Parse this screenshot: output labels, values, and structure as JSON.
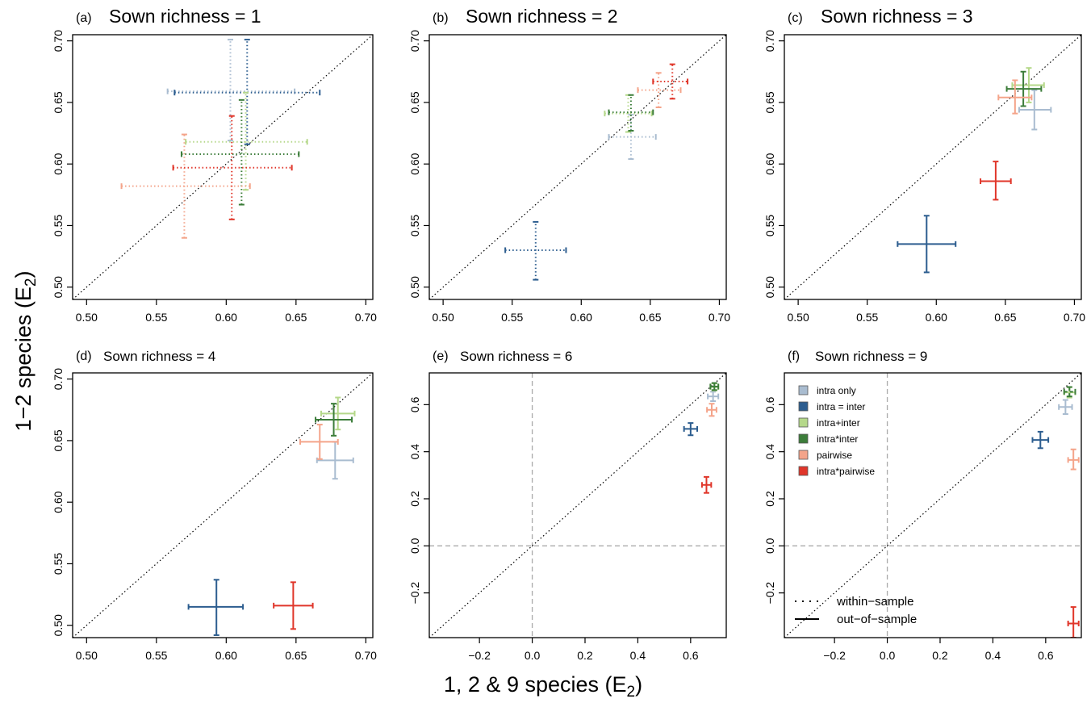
{
  "figure": {
    "ylabel": "1−2 species (E",
    "ylabel_sub": "2",
    "ylabel_tail": ")",
    "xlabel": "1, 2 & 9 species (E",
    "xlabel_sub": "2",
    "xlabel_tail": ")"
  },
  "legend": {
    "models": [
      {
        "label": "intra only",
        "color": "#a9bcd0"
      },
      {
        "label": "intra = inter",
        "color": "#2c5d8f"
      },
      {
        "label": "intra+inter",
        "color": "#b5d88a"
      },
      {
        "label": "intra*inter",
        "color": "#3c7d3a"
      },
      {
        "label": "pairwise",
        "color": "#f4a48a"
      },
      {
        "label": "intra*pairwise",
        "color": "#e0362a"
      }
    ],
    "line_types": [
      {
        "label": "within−sample",
        "style": "dotted"
      },
      {
        "label": "out−of−sample",
        "style": "solid"
      }
    ]
  },
  "chart_data": [
    {
      "type": "scatter",
      "letter": "(a)",
      "title": "Sown richness = 1",
      "xlim": [
        0.49,
        0.705
      ],
      "ylim": [
        0.49,
        0.705
      ],
      "xticks": [
        0.5,
        0.55,
        0.6,
        0.65,
        0.7
      ],
      "yticks": [
        0.5,
        0.55,
        0.6,
        0.65,
        0.7
      ],
      "tick_labels": [
        "0.50",
        "0.55",
        "0.60",
        "0.65",
        "0.70"
      ],
      "diagonal": true,
      "zero_lines": false,
      "points": [
        {
          "model": "intra only",
          "x": 0.603,
          "y": 0.659,
          "xlo": 0.558,
          "xhi": 0.649,
          "ylo": 0.619,
          "yhi": 0.701,
          "line": "dotted"
        },
        {
          "model": "intra = inter",
          "x": 0.615,
          "y": 0.658,
          "xlo": 0.563,
          "xhi": 0.667,
          "ylo": 0.616,
          "yhi": 0.701,
          "line": "dotted"
        },
        {
          "model": "intra+inter",
          "x": 0.614,
          "y": 0.618,
          "xlo": 0.571,
          "xhi": 0.658,
          "ylo": 0.579,
          "yhi": 0.658,
          "line": "dotted"
        },
        {
          "model": "intra*inter",
          "x": 0.611,
          "y": 0.608,
          "xlo": 0.568,
          "xhi": 0.652,
          "ylo": 0.567,
          "yhi": 0.652,
          "line": "dotted"
        },
        {
          "model": "pairwise",
          "x": 0.57,
          "y": 0.582,
          "xlo": 0.525,
          "xhi": 0.617,
          "ylo": 0.54,
          "yhi": 0.624,
          "line": "dotted"
        },
        {
          "model": "intra*pairwise",
          "x": 0.604,
          "y": 0.597,
          "xlo": 0.562,
          "xhi": 0.647,
          "ylo": 0.555,
          "yhi": 0.639,
          "line": "dotted"
        }
      ]
    },
    {
      "type": "scatter",
      "letter": "(b)",
      "title": "Sown richness = 2",
      "xlim": [
        0.49,
        0.705
      ],
      "ylim": [
        0.49,
        0.705
      ],
      "xticks": [
        0.5,
        0.55,
        0.6,
        0.65,
        0.7
      ],
      "yticks": [
        0.5,
        0.55,
        0.6,
        0.65,
        0.7
      ],
      "tick_labels": [
        "0.50",
        "0.55",
        "0.60",
        "0.65",
        "0.70"
      ],
      "diagonal": true,
      "zero_lines": false,
      "points": [
        {
          "model": "intra only",
          "x": 0.636,
          "y": 0.622,
          "xlo": 0.62,
          "xhi": 0.654,
          "ylo": 0.604,
          "yhi": 0.64,
          "line": "dotted"
        },
        {
          "model": "intra = inter",
          "x": 0.567,
          "y": 0.53,
          "xlo": 0.545,
          "xhi": 0.589,
          "ylo": 0.506,
          "yhi": 0.553,
          "line": "dotted"
        },
        {
          "model": "intra+inter",
          "x": 0.634,
          "y": 0.641,
          "xlo": 0.617,
          "xhi": 0.651,
          "ylo": 0.626,
          "yhi": 0.656,
          "line": "dotted"
        },
        {
          "model": "intra*inter",
          "x": 0.636,
          "y": 0.642,
          "xlo": 0.62,
          "xhi": 0.652,
          "ylo": 0.627,
          "yhi": 0.656,
          "line": "dotted"
        },
        {
          "model": "pairwise",
          "x": 0.656,
          "y": 0.66,
          "xlo": 0.641,
          "xhi": 0.672,
          "ylo": 0.646,
          "yhi": 0.674,
          "line": "dotted"
        },
        {
          "model": "intra*pairwise",
          "x": 0.666,
          "y": 0.667,
          "xlo": 0.652,
          "xhi": 0.677,
          "ylo": 0.653,
          "yhi": 0.681,
          "line": "dotted"
        }
      ]
    },
    {
      "type": "scatter",
      "letter": "(c)",
      "title": "Sown richness = 3",
      "xlim": [
        0.49,
        0.705
      ],
      "ylim": [
        0.49,
        0.705
      ],
      "xticks": [
        0.5,
        0.55,
        0.6,
        0.65,
        0.7
      ],
      "yticks": [
        0.5,
        0.55,
        0.6,
        0.65,
        0.7
      ],
      "tick_labels": [
        "0.50",
        "0.55",
        "0.60",
        "0.65",
        "0.70"
      ],
      "diagonal": true,
      "zero_lines": false,
      "points": [
        {
          "model": "intra only",
          "x": 0.671,
          "y": 0.644,
          "xlo": 0.66,
          "xhi": 0.683,
          "ylo": 0.628,
          "yhi": 0.66,
          "line": "solid"
        },
        {
          "model": "intra = inter",
          "x": 0.593,
          "y": 0.535,
          "xlo": 0.572,
          "xhi": 0.614,
          "ylo": 0.512,
          "yhi": 0.558,
          "line": "solid"
        },
        {
          "model": "intra+inter",
          "x": 0.667,
          "y": 0.664,
          "xlo": 0.655,
          "xhi": 0.678,
          "ylo": 0.65,
          "yhi": 0.678,
          "line": "solid"
        },
        {
          "model": "intra*inter",
          "x": 0.663,
          "y": 0.661,
          "xlo": 0.651,
          "xhi": 0.676,
          "ylo": 0.647,
          "yhi": 0.675,
          "line": "solid"
        },
        {
          "model": "pairwise",
          "x": 0.657,
          "y": 0.654,
          "xlo": 0.645,
          "xhi": 0.669,
          "ylo": 0.641,
          "yhi": 0.668,
          "line": "solid"
        },
        {
          "model": "intra*pairwise",
          "x": 0.643,
          "y": 0.586,
          "xlo": 0.632,
          "xhi": 0.654,
          "ylo": 0.571,
          "yhi": 0.602,
          "line": "solid"
        }
      ]
    },
    {
      "type": "scatter",
      "letter": "(d)",
      "title": "Sown richness = 4",
      "xlim": [
        0.49,
        0.705
      ],
      "ylim": [
        0.49,
        0.705
      ],
      "xticks": [
        0.5,
        0.55,
        0.6,
        0.65,
        0.7
      ],
      "yticks": [
        0.5,
        0.55,
        0.6,
        0.65,
        0.7
      ],
      "tick_labels": [
        "0.50",
        "0.55",
        "0.60",
        "0.65",
        "0.70"
      ],
      "diagonal": true,
      "zero_lines": false,
      "points": [
        {
          "model": "intra only",
          "x": 0.678,
          "y": 0.634,
          "xlo": 0.665,
          "xhi": 0.691,
          "ylo": 0.619,
          "yhi": 0.649,
          "line": "solid"
        },
        {
          "model": "intra = inter",
          "x": 0.593,
          "y": 0.515,
          "xlo": 0.573,
          "xhi": 0.612,
          "ylo": 0.492,
          "yhi": 0.537,
          "line": "solid"
        },
        {
          "model": "intra+inter",
          "x": 0.68,
          "y": 0.672,
          "xlo": 0.668,
          "xhi": 0.692,
          "ylo": 0.659,
          "yhi": 0.685,
          "line": "solid"
        },
        {
          "model": "intra*inter",
          "x": 0.677,
          "y": 0.667,
          "xlo": 0.664,
          "xhi": 0.69,
          "ylo": 0.654,
          "yhi": 0.68,
          "line": "solid"
        },
        {
          "model": "pairwise",
          "x": 0.667,
          "y": 0.649,
          "xlo": 0.653,
          "xhi": 0.68,
          "ylo": 0.635,
          "yhi": 0.663,
          "line": "solid"
        },
        {
          "model": "intra*pairwise",
          "x": 0.648,
          "y": 0.516,
          "xlo": 0.634,
          "xhi": 0.662,
          "ylo": 0.497,
          "yhi": 0.535,
          "line": "solid"
        }
      ]
    },
    {
      "type": "scatter",
      "letter": "(e)",
      "title": "Sown richness = 6",
      "xlim": [
        -0.39,
        0.735
      ],
      "ylim": [
        -0.39,
        0.735
      ],
      "xticks": [
        -0.2,
        0.0,
        0.2,
        0.4,
        0.6
      ],
      "yticks": [
        -0.2,
        0.0,
        0.2,
        0.4,
        0.6
      ],
      "tick_labels": [
        "−0.2",
        "0.0",
        "0.2",
        "0.4",
        "0.6"
      ],
      "diagonal": true,
      "zero_lines": true,
      "points": [
        {
          "model": "intra only",
          "x": 0.685,
          "y": 0.635,
          "xlo": 0.665,
          "xhi": 0.705,
          "ylo": 0.615,
          "yhi": 0.655,
          "line": "solid"
        },
        {
          "model": "intra = inter",
          "x": 0.6,
          "y": 0.497,
          "xlo": 0.575,
          "xhi": 0.625,
          "ylo": 0.47,
          "yhi": 0.522,
          "line": "solid"
        },
        {
          "model": "intra+inter",
          "x": 0.69,
          "y": 0.675,
          "xlo": 0.675,
          "xhi": 0.705,
          "ylo": 0.66,
          "yhi": 0.69,
          "line": "solid"
        },
        {
          "model": "intra*inter",
          "x": 0.69,
          "y": 0.677,
          "xlo": 0.675,
          "xhi": 0.705,
          "ylo": 0.662,
          "yhi": 0.692,
          "line": "solid"
        },
        {
          "model": "pairwise",
          "x": 0.68,
          "y": 0.578,
          "xlo": 0.662,
          "xhi": 0.698,
          "ylo": 0.552,
          "yhi": 0.604,
          "line": "solid"
        },
        {
          "model": "intra*pairwise",
          "x": 0.66,
          "y": 0.259,
          "xlo": 0.643,
          "xhi": 0.678,
          "ylo": 0.225,
          "yhi": 0.293,
          "line": "solid"
        }
      ]
    },
    {
      "type": "scatter",
      "letter": "(f)",
      "title": "Sown richness = 9",
      "xlim": [
        -0.39,
        0.735
      ],
      "ylim": [
        -0.39,
        0.735
      ],
      "xticks": [
        -0.2,
        0.0,
        0.2,
        0.4,
        0.6
      ],
      "yticks": [
        -0.2,
        0.0,
        0.2,
        0.4,
        0.6
      ],
      "tick_labels": [
        "−0.2",
        "0.0",
        "0.2",
        "0.4",
        "0.6"
      ],
      "diagonal": true,
      "zero_lines": true,
      "points": [
        {
          "model": "intra only",
          "x": 0.675,
          "y": 0.59,
          "xlo": 0.65,
          "xhi": 0.7,
          "ylo": 0.56,
          "yhi": 0.62,
          "line": "solid"
        },
        {
          "model": "intra = inter",
          "x": 0.58,
          "y": 0.45,
          "xlo": 0.55,
          "xhi": 0.61,
          "ylo": 0.415,
          "yhi": 0.485,
          "line": "solid"
        },
        {
          "model": "intra+inter",
          "x": 0.69,
          "y": 0.652,
          "xlo": 0.67,
          "xhi": 0.712,
          "ylo": 0.63,
          "yhi": 0.674,
          "line": "solid"
        },
        {
          "model": "intra*inter",
          "x": 0.69,
          "y": 0.655,
          "xlo": 0.67,
          "xhi": 0.712,
          "ylo": 0.635,
          "yhi": 0.675,
          "line": "dashed"
        },
        {
          "model": "pairwise",
          "x": 0.705,
          "y": 0.365,
          "xlo": 0.685,
          "xhi": 0.725,
          "ylo": 0.325,
          "yhi": 0.41,
          "line": "solid"
        },
        {
          "model": "intra*pairwise",
          "x": 0.705,
          "y": -0.33,
          "xlo": 0.685,
          "xhi": 0.725,
          "ylo": -0.39,
          "yhi": -0.26,
          "line": "solid"
        }
      ]
    }
  ]
}
